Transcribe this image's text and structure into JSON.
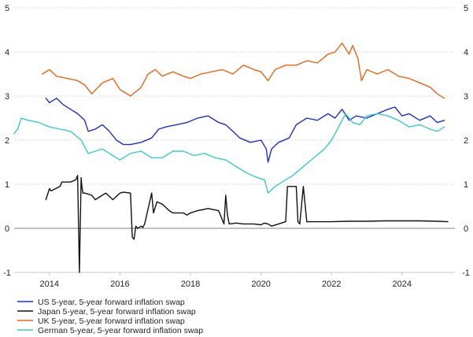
{
  "chart_data": {
    "type": "line",
    "title": "",
    "xlabel": "",
    "ylabel": "",
    "xlim": [
      2013.0,
      2025.5
    ],
    "ylim": [
      -1,
      5
    ],
    "x_ticks": [
      2014,
      2016,
      2018,
      2020,
      2022,
      2024
    ],
    "x_tick_labels": [
      "2014",
      "2016",
      "2018",
      "2020",
      "2022",
      "2024"
    ],
    "y_ticks": [
      -1,
      0,
      1,
      2,
      3,
      4,
      5
    ],
    "y_tick_labels": [
      "-1",
      "0",
      "1",
      "2",
      "3",
      "4",
      "5"
    ],
    "y_axis_sides": "both",
    "grid": "horizontal dotted",
    "zero_line": true,
    "legend_position": "bottom-left",
    "series": [
      {
        "name": "US 5-year, 5-year forward inflation swap",
        "color": "#1f2ec8",
        "x": [
          2013.9,
          2014.0,
          2014.2,
          2014.4,
          2014.6,
          2014.8,
          2015.0,
          2015.1,
          2015.3,
          2015.5,
          2015.7,
          2015.9,
          2016.1,
          2016.3,
          2016.6,
          2016.9,
          2017.1,
          2017.3,
          2017.6,
          2017.9,
          2018.2,
          2018.5,
          2018.8,
          2019.0,
          2019.2,
          2019.4,
          2019.7,
          2020.0,
          2020.15,
          2020.2,
          2020.3,
          2020.5,
          2020.8,
          2021.0,
          2021.3,
          2021.6,
          2021.9,
          2022.1,
          2022.3,
          2022.5,
          2022.7,
          2023.0,
          2023.3,
          2023.6,
          2023.8,
          2024.0,
          2024.2,
          2024.5,
          2024.8,
          2025.0,
          2025.2
        ],
        "y": [
          2.95,
          2.85,
          2.95,
          2.8,
          2.7,
          2.6,
          2.45,
          2.2,
          2.25,
          2.35,
          2.2,
          2.0,
          1.9,
          1.9,
          1.95,
          2.05,
          2.25,
          2.3,
          2.35,
          2.4,
          2.5,
          2.55,
          2.4,
          2.35,
          2.2,
          2.05,
          1.95,
          2.0,
          1.8,
          1.5,
          1.8,
          1.95,
          2.05,
          2.35,
          2.5,
          2.45,
          2.6,
          2.5,
          2.7,
          2.45,
          2.55,
          2.5,
          2.6,
          2.7,
          2.75,
          2.55,
          2.6,
          2.45,
          2.55,
          2.4,
          2.45
        ]
      },
      {
        "name": "Japan 5-year, 5-year forward inflation swap",
        "color": "#111111",
        "x": [
          2013.9,
          2014.0,
          2014.05,
          2014.3,
          2014.35,
          2014.6,
          2014.75,
          2014.8,
          2014.85,
          2014.9,
          2014.92,
          2014.95,
          2015.0,
          2015.2,
          2015.3,
          2015.6,
          2015.8,
          2016.0,
          2016.1,
          2016.3,
          2016.35,
          2016.4,
          2016.45,
          2016.5,
          2016.6,
          2016.65,
          2016.7,
          2016.9,
          2016.95,
          2017.05,
          2017.2,
          2017.4,
          2017.5,
          2017.8,
          2017.9,
          2018.0,
          2018.2,
          2018.5,
          2018.8,
          2018.95,
          2019.0,
          2019.05,
          2019.1,
          2019.3,
          2019.5,
          2019.8,
          2020.0,
          2020.1,
          2020.2,
          2020.3,
          2020.5,
          2020.7,
          2020.75,
          2021.0,
          2021.05,
          2021.1,
          2021.2,
          2021.3,
          2021.8,
          2022.0,
          2022.5,
          2023.0,
          2023.5,
          2024.0,
          2024.5,
          2025.0,
          2025.3
        ],
        "y": [
          0.65,
          0.9,
          0.85,
          0.95,
          1.05,
          1.05,
          1.1,
          1.2,
          -1.0,
          1.15,
          0.95,
          0.8,
          0.8,
          0.75,
          0.65,
          0.8,
          0.65,
          0.8,
          0.82,
          0.8,
          -0.2,
          -0.25,
          0.05,
          0.0,
          0.05,
          0.02,
          0.1,
          0.8,
          0.35,
          0.6,
          0.55,
          0.4,
          0.35,
          0.35,
          0.3,
          0.35,
          0.4,
          0.45,
          0.4,
          0.1,
          0.75,
          0.3,
          0.1,
          0.12,
          0.1,
          0.1,
          0.08,
          0.12,
          0.1,
          0.05,
          0.1,
          0.15,
          0.95,
          0.95,
          0.15,
          0.1,
          0.95,
          0.15,
          0.15,
          0.15,
          0.16,
          0.16,
          0.17,
          0.17,
          0.17,
          0.16,
          0.15
        ]
      },
      {
        "name": "UK 5-year, 5-year forward inflation swap",
        "color": "#e8661a",
        "x": [
          2013.8,
          2014.0,
          2014.2,
          2014.5,
          2014.8,
          2015.0,
          2015.2,
          2015.5,
          2015.8,
          2016.0,
          2016.3,
          2016.6,
          2016.8,
          2017.0,
          2017.2,
          2017.5,
          2017.8,
          2018.0,
          2018.3,
          2018.6,
          2018.9,
          2019.2,
          2019.5,
          2019.8,
          2020.0,
          2020.2,
          2020.4,
          2020.7,
          2021.0,
          2021.3,
          2021.6,
          2021.9,
          2022.1,
          2022.3,
          2022.5,
          2022.6,
          2022.75,
          2022.85,
          2023.0,
          2023.3,
          2023.6,
          2023.9,
          2024.2,
          2024.5,
          2024.8,
          2025.0,
          2025.2
        ],
        "y": [
          3.5,
          3.6,
          3.45,
          3.4,
          3.35,
          3.25,
          3.05,
          3.3,
          3.4,
          3.15,
          3.0,
          3.2,
          3.5,
          3.6,
          3.45,
          3.55,
          3.45,
          3.4,
          3.5,
          3.55,
          3.6,
          3.5,
          3.7,
          3.6,
          3.55,
          3.35,
          3.6,
          3.7,
          3.7,
          3.8,
          3.75,
          3.95,
          4.0,
          4.2,
          3.95,
          4.15,
          3.85,
          3.35,
          3.6,
          3.5,
          3.6,
          3.45,
          3.4,
          3.3,
          3.2,
          3.05,
          2.95
        ]
      },
      {
        "name": "German 5-year, 5-year forward inflation swap",
        "color": "#3cc8c8",
        "x": [
          2013.0,
          2013.1,
          2013.2,
          2013.4,
          2013.7,
          2014.0,
          2014.3,
          2014.6,
          2014.9,
          2015.1,
          2015.3,
          2015.5,
          2015.8,
          2016.0,
          2016.3,
          2016.6,
          2016.9,
          2017.2,
          2017.5,
          2017.8,
          2018.1,
          2018.4,
          2018.7,
          2019.0,
          2019.3,
          2019.6,
          2019.9,
          2020.1,
          2020.2,
          2020.4,
          2020.6,
          2020.9,
          2021.2,
          2021.5,
          2021.8,
          2022.0,
          2022.2,
          2022.4,
          2022.6,
          2022.8,
          2023.0,
          2023.3,
          2023.6,
          2023.9,
          2024.2,
          2024.5,
          2024.8,
          2025.0,
          2025.2
        ],
        "y": [
          2.15,
          2.25,
          2.5,
          2.45,
          2.4,
          2.3,
          2.25,
          2.2,
          2.0,
          1.7,
          1.75,
          1.8,
          1.65,
          1.55,
          1.7,
          1.75,
          1.6,
          1.6,
          1.75,
          1.75,
          1.65,
          1.7,
          1.6,
          1.55,
          1.4,
          1.25,
          1.15,
          1.1,
          0.8,
          0.95,
          1.05,
          1.2,
          1.4,
          1.6,
          1.8,
          2.0,
          2.3,
          2.6,
          2.4,
          2.35,
          2.55,
          2.6,
          2.55,
          2.45,
          2.3,
          2.35,
          2.25,
          2.2,
          2.3
        ]
      }
    ]
  }
}
